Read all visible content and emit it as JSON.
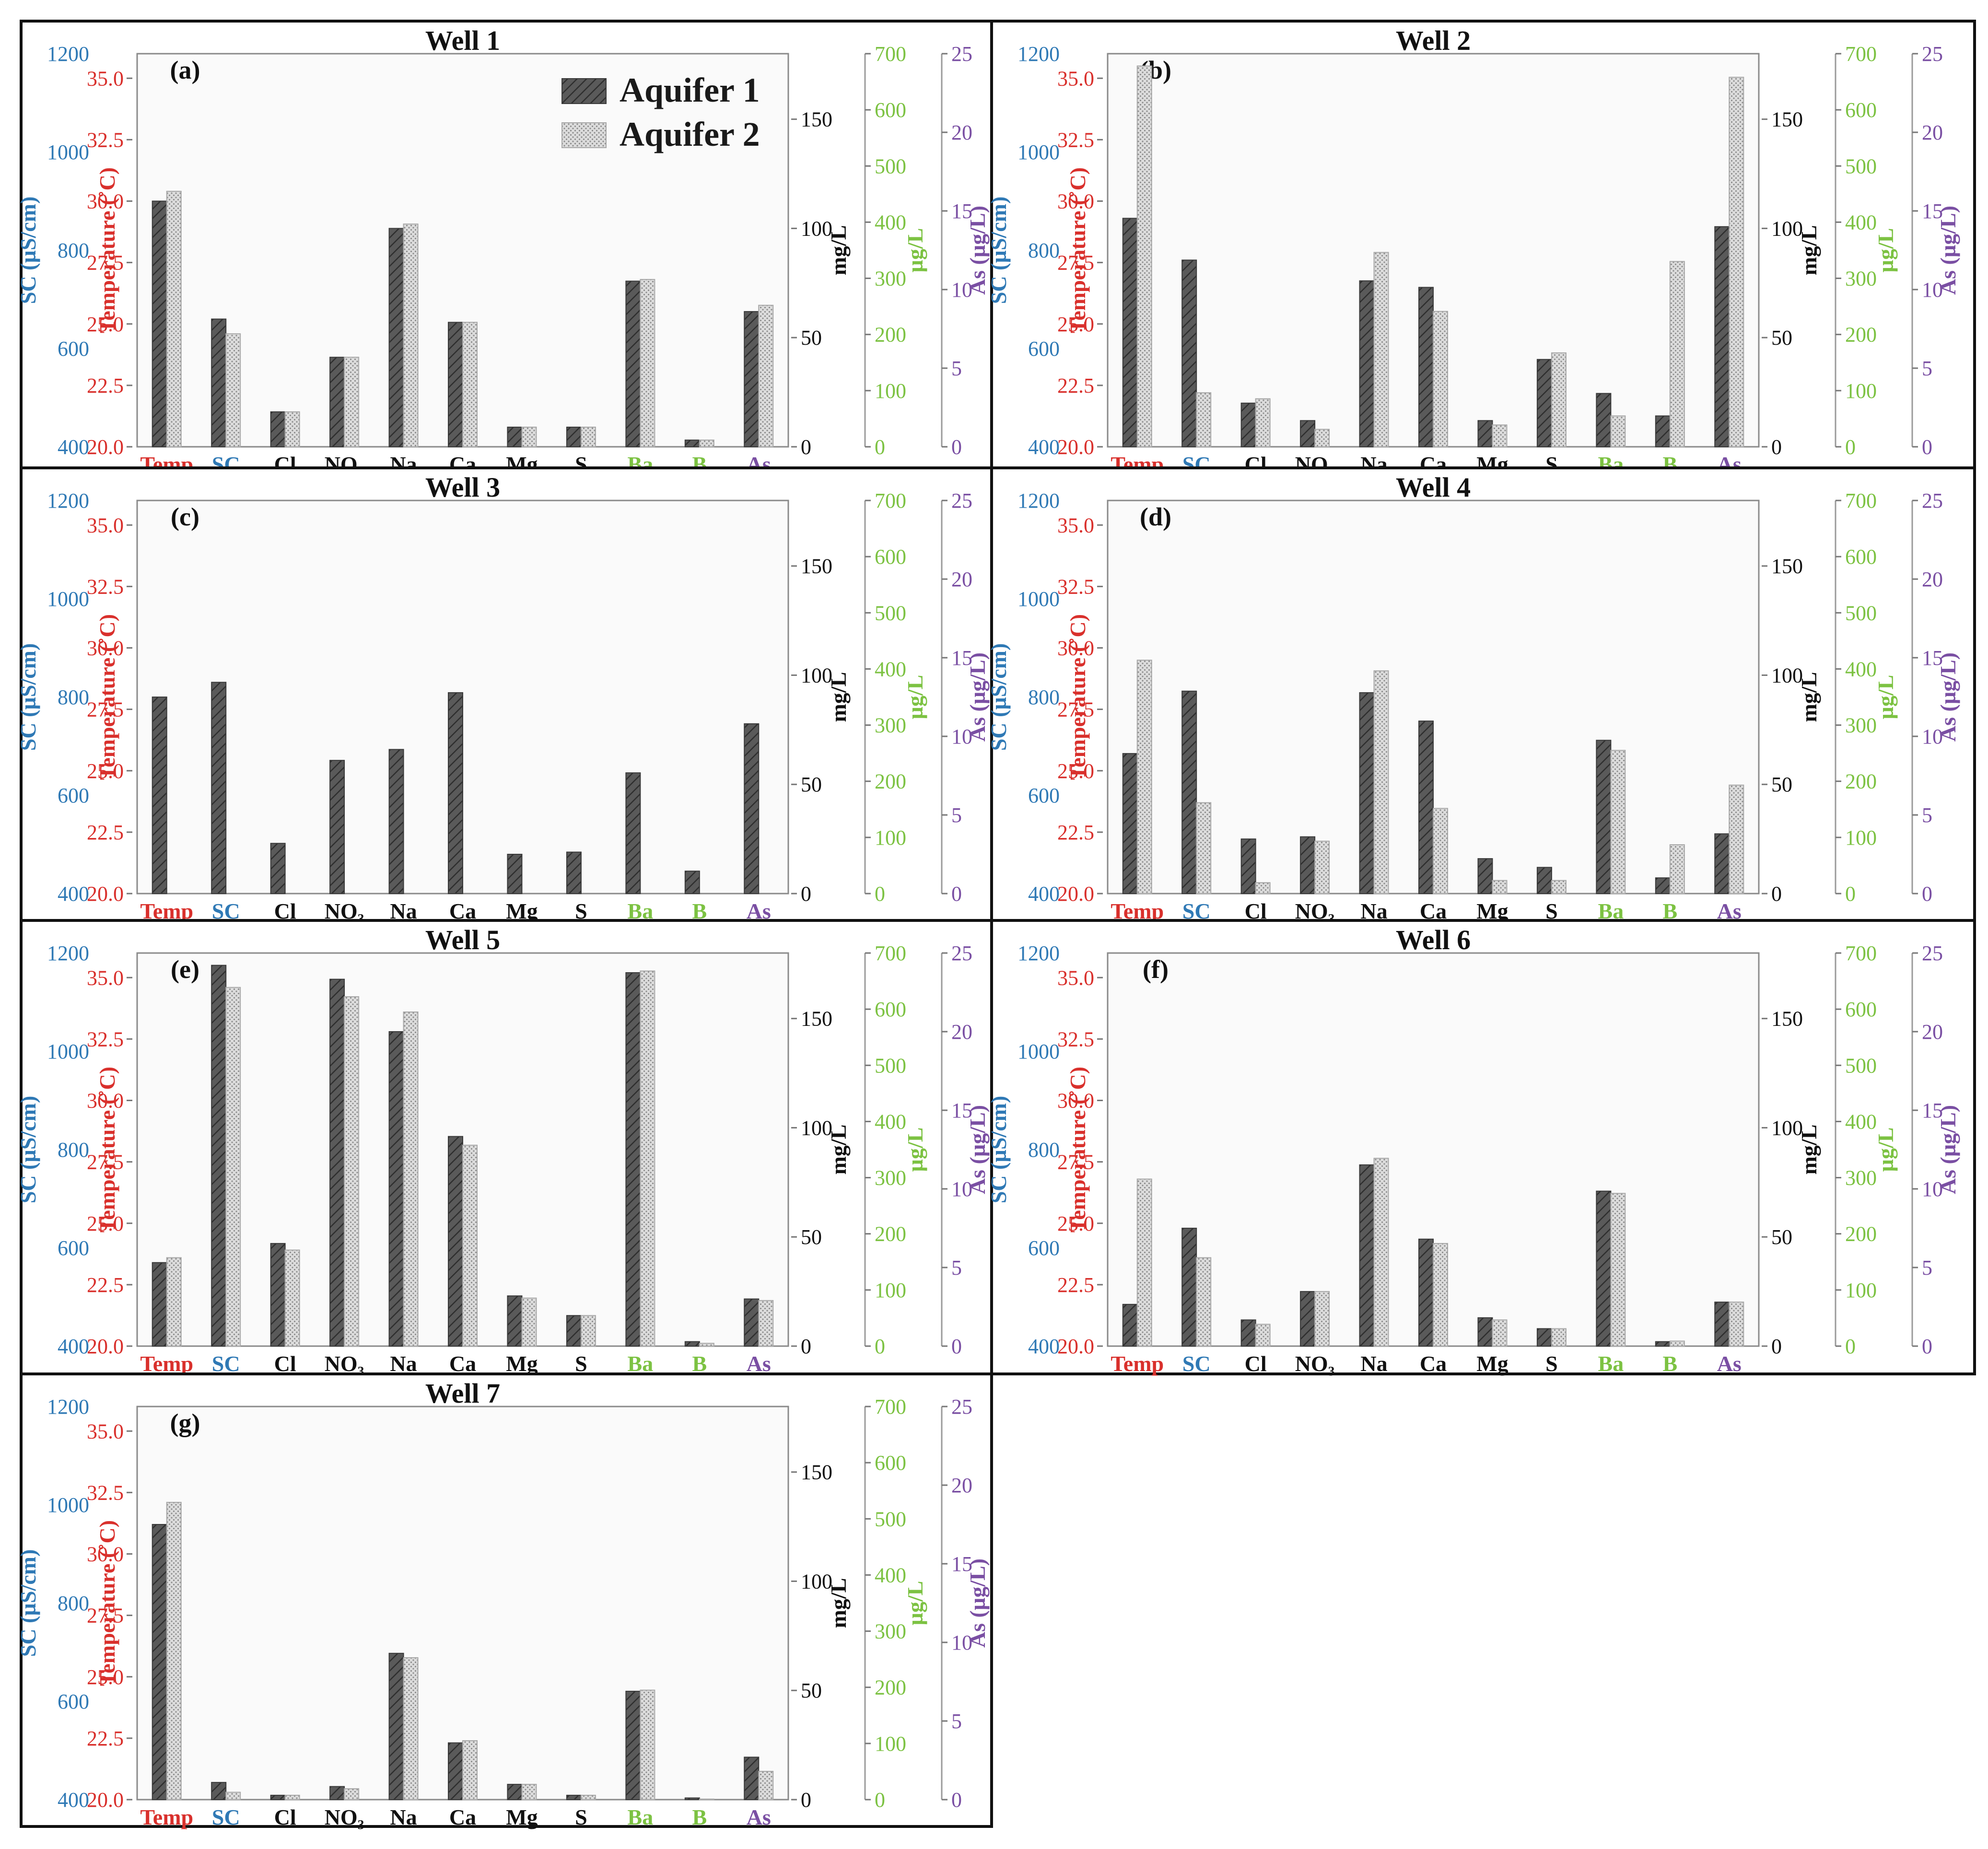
{
  "colors": {
    "aquifer1": "#555555",
    "aquifer2": "#d2d2d2",
    "temp": "#d9302c",
    "sc": "#2f79b5",
    "mgL": "#111111",
    "ugL": "#7cc242",
    "as": "#7a4fa3"
  },
  "chart_data": {
    "type": "bar",
    "series_names": [
      "Aquifer 1",
      "Aquifer 2"
    ],
    "categories": [
      "Temp",
      "SC",
      "Cl",
      "NO₃",
      "Na",
      "Ca",
      "Mg",
      "S",
      "Ba",
      "B",
      "As"
    ],
    "category_axis": [
      "temp",
      "sc",
      "mgL",
      "mgL",
      "mgL",
      "mgL",
      "mgL",
      "mgL",
      "ugL",
      "ugL",
      "as"
    ],
    "category_colors": [
      "temp",
      "sc",
      "mgL",
      "mgL",
      "mgL",
      "mgL",
      "mgL",
      "mgL",
      "ugL",
      "ugL",
      "as"
    ],
    "axes": {
      "sc": {
        "label": "SC (µS/cm)",
        "range": [
          400,
          1200
        ],
        "ticks": [
          "400",
          "600",
          "800",
          "1000",
          "1200"
        ],
        "color": "sc"
      },
      "temp": {
        "label": "Temperature (˚C)",
        "range": [
          20,
          36
        ],
        "ticks": [
          "20.0",
          "22.5",
          "25.0",
          "27.5",
          "30.0",
          "32.5",
          "35.0"
        ],
        "color": "temp"
      },
      "mgL": {
        "label": "mg/L",
        "range": [
          0,
          180
        ],
        "ticks": [
          "0",
          "50",
          "100",
          "150"
        ],
        "color": "mgL"
      },
      "ugL": {
        "label": "µg/L",
        "range": [
          0,
          700
        ],
        "ticks": [
          "0",
          "100",
          "200",
          "300",
          "400",
          "500",
          "600",
          "700"
        ],
        "color": "ugL"
      },
      "as": {
        "label": "As (µg/L)",
        "range": [
          0,
          25
        ],
        "ticks": [
          "0",
          "5",
          "10",
          "15",
          "20",
          "25"
        ],
        "color": "as"
      }
    },
    "panels": [
      {
        "title": "Well 1",
        "tag": "(a)",
        "aquifer1": [
          30.0,
          660,
          16,
          41,
          100,
          57,
          9,
          9,
          295,
          12,
          8.6
        ],
        "aquifer2": [
          30.4,
          630,
          16,
          41,
          102,
          57,
          9,
          9,
          298,
          12,
          9.0
        ]
      },
      {
        "title": "Well 2",
        "tag": "(b)",
        "aquifer1": [
          29.3,
          780,
          20,
          12,
          76,
          73,
          12,
          40,
          95,
          55,
          14.0
        ],
        "aquifer2": [
          35.5,
          510,
          22,
          8,
          89,
          62,
          10,
          43,
          55,
          330,
          23.5
        ]
      },
      {
        "title": "Well 3",
        "tag": "(c)",
        "aquifer1": [
          28.0,
          830,
          23,
          61,
          66,
          92,
          18,
          19,
          215,
          40,
          10.8
        ]
      },
      {
        "title": "Well 4",
        "tag": "(d)",
        "aquifer1": [
          25.7,
          812,
          25,
          26,
          92,
          79,
          16,
          12,
          273,
          28,
          3.8
        ],
        "aquifer2": [
          29.5,
          585,
          5,
          24,
          102,
          39,
          6,
          6,
          255,
          87,
          6.9
        ]
      },
      {
        "title": "Well 5",
        "tag": "(e)",
        "aquifer1": [
          23.4,
          1175,
          47,
          168,
          144,
          96,
          23,
          14,
          665,
          8,
          3.0
        ],
        "aquifer2": [
          23.6,
          1130,
          44,
          160,
          153,
          92,
          22,
          14,
          668,
          5,
          2.9
        ]
      },
      {
        "title": "Well 6",
        "tag": "(f)",
        "aquifer1": [
          21.7,
          640,
          12,
          25,
          83,
          49,
          13,
          8,
          276,
          8,
          2.8
        ],
        "aquifer2": [
          26.8,
          580,
          10,
          25,
          86,
          47,
          12,
          8,
          272,
          9,
          2.8
        ]
      },
      {
        "title": "Well 7",
        "tag": "(g)",
        "aquifer1": [
          31.2,
          435,
          2,
          6,
          67,
          26,
          7,
          2,
          193,
          3,
          2.7
        ],
        "aquifer2": [
          32.1,
          415,
          2,
          5,
          65,
          27,
          7,
          2,
          195,
          1,
          1.8
        ]
      }
    ]
  }
}
